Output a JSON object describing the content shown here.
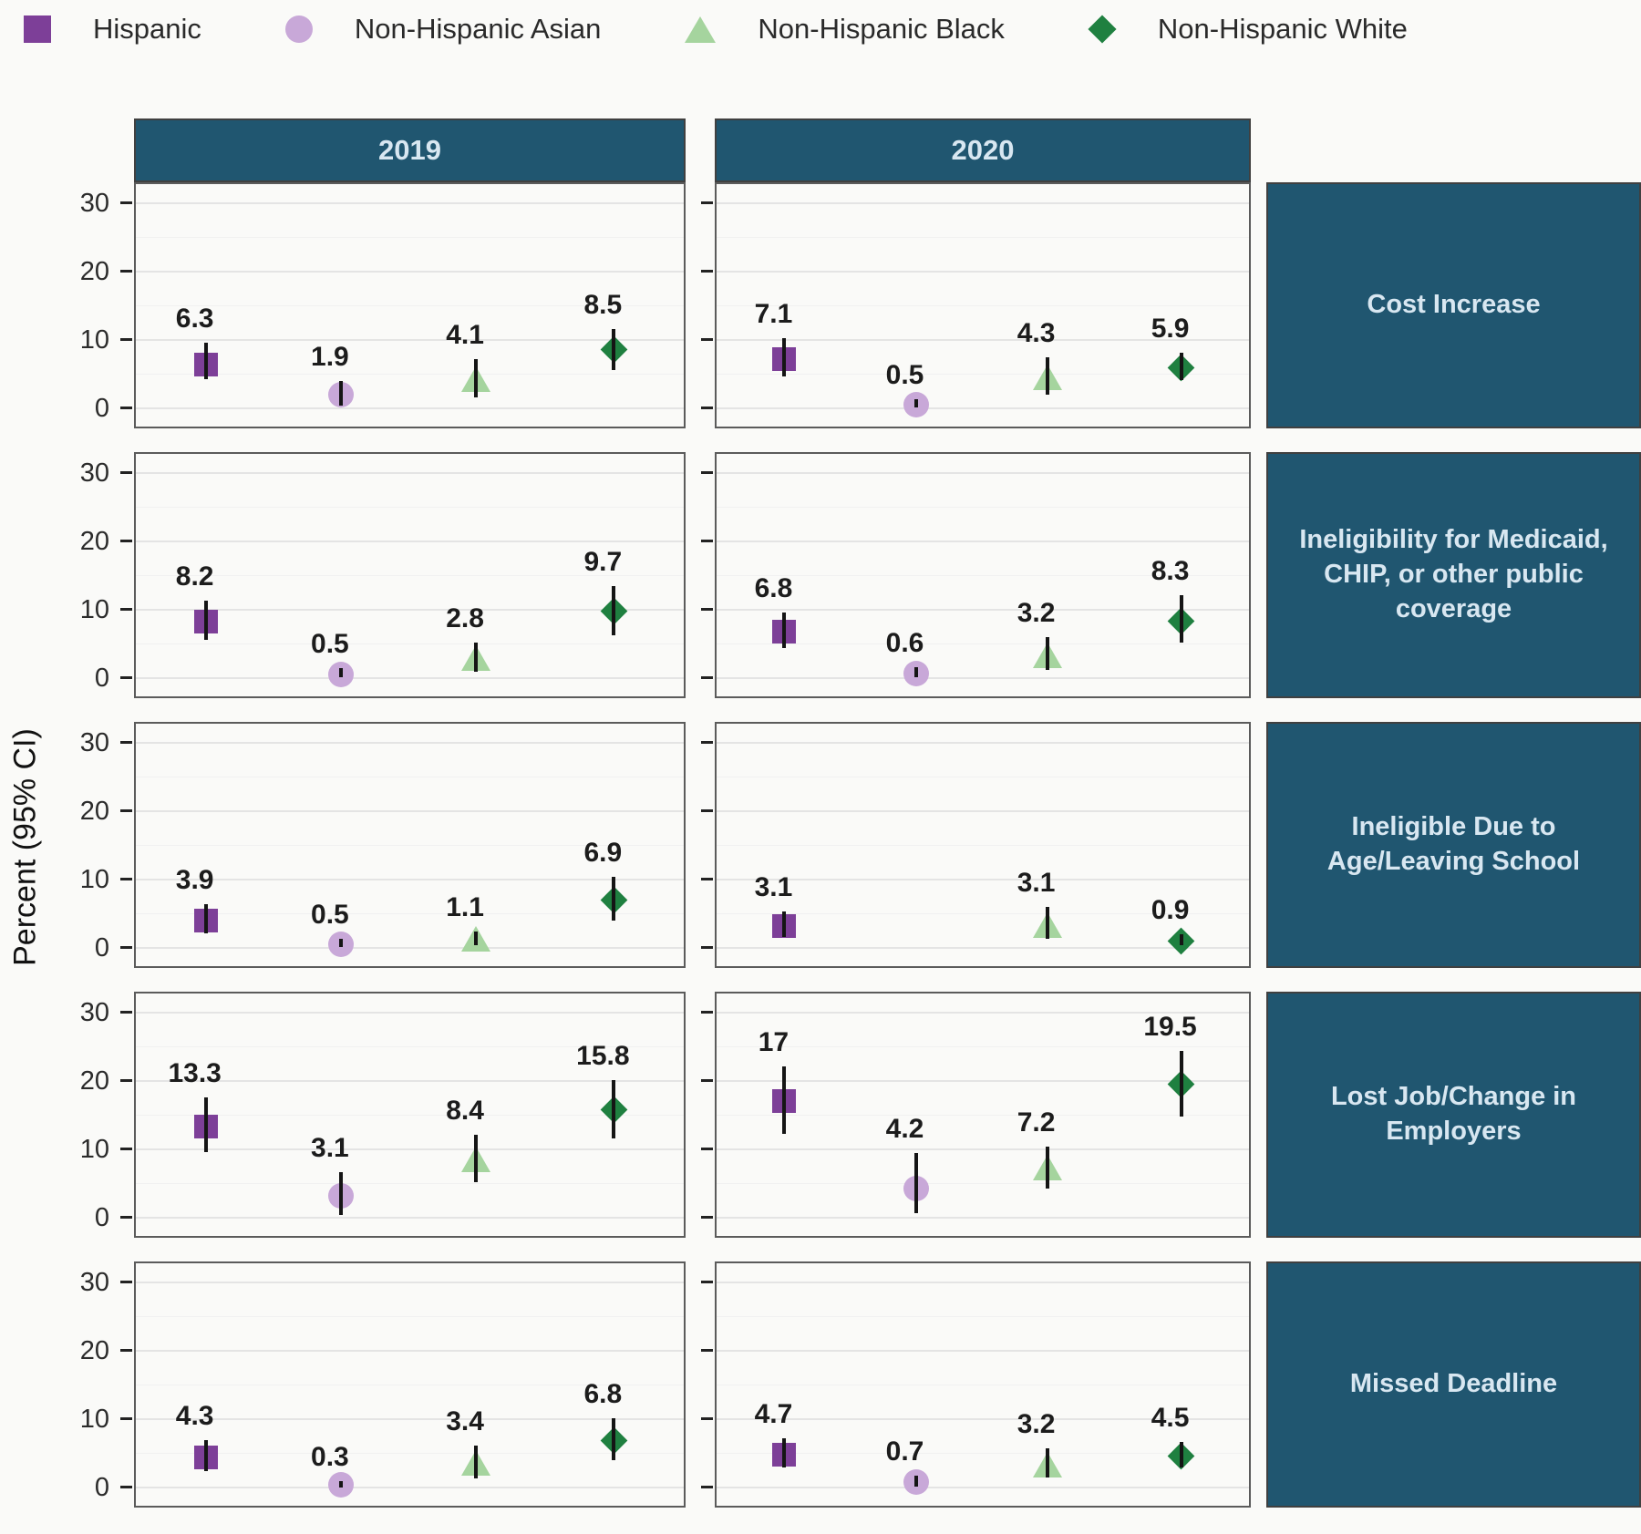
{
  "legend": {
    "items": [
      {
        "id": "hispanic",
        "label": "Hispanic",
        "shape": "square",
        "color": "#7d3f98"
      },
      {
        "id": "non-hispanic-asian",
        "label": "Non-Hispanic Asian",
        "shape": "circle",
        "color": "#c8a8d8"
      },
      {
        "id": "non-hispanic-black",
        "label": "Non-Hispanic Black",
        "shape": "triangle",
        "color": "#a5d49e"
      },
      {
        "id": "non-hispanic-white",
        "label": "Non-Hispanic White",
        "shape": "diamond",
        "color": "#1f8040"
      }
    ]
  },
  "colors": {
    "strip_bg": "#205670",
    "strip_text": "#d8e7f1",
    "error_bar": "#151515",
    "panel_bg": "#ffffff",
    "grid_major": "#e4e4e4"
  },
  "chart_data": {
    "type": "scatter",
    "title": "",
    "xlabel": "",
    "ylabel": "Percent (95% CI)",
    "y_ticks": [
      30,
      20,
      10,
      0
    ],
    "y_minor": [
      25,
      15,
      5
    ],
    "ylim": [
      -3,
      33
    ],
    "grid": true,
    "legend_position": "top",
    "columns": [
      "2019",
      "2020"
    ],
    "groups": [
      "Hispanic",
      "Non-Hispanic Asian",
      "Non-Hispanic Black",
      "Non-Hispanic White"
    ],
    "facets": [
      {
        "label": "Cost Increase",
        "panels": [
          {
            "column": "2019",
            "points": [
              {
                "group": "Hispanic",
                "value": 6.3,
                "ci_low": 4.2,
                "ci_high": 9.6
              },
              {
                "group": "Non-Hispanic Asian",
                "value": 1.9,
                "ci_low": 0.4,
                "ci_high": 3.9
              },
              {
                "group": "Non-Hispanic Black",
                "value": 4.1,
                "ci_low": 1.6,
                "ci_high": 7.2
              },
              {
                "group": "Non-Hispanic White",
                "value": 8.5,
                "ci_low": 5.6,
                "ci_high": 11.6
              }
            ]
          },
          {
            "column": "2020",
            "points": [
              {
                "group": "Hispanic",
                "value": 7.1,
                "ci_low": 4.6,
                "ci_high": 10.2
              },
              {
                "group": "Non-Hispanic Asian",
                "value": 0.5,
                "ci_low": 0.1,
                "ci_high": 1.3
              },
              {
                "group": "Non-Hispanic Black",
                "value": 4.3,
                "ci_low": 2.0,
                "ci_high": 7.4
              },
              {
                "group": "Non-Hispanic White",
                "value": 5.9,
                "ci_low": 4.1,
                "ci_high": 8.1
              }
            ]
          }
        ]
      },
      {
        "label": "Ineligibility for Medicaid, CHIP, or other public coverage",
        "panels": [
          {
            "column": "2019",
            "points": [
              {
                "group": "Hispanic",
                "value": 8.2,
                "ci_low": 5.6,
                "ci_high": 11.3
              },
              {
                "group": "Non-Hispanic Asian",
                "value": 0.5,
                "ci_low": 0.1,
                "ci_high": 1.4
              },
              {
                "group": "Non-Hispanic Black",
                "value": 2.8,
                "ci_low": 0.9,
                "ci_high": 5.1
              },
              {
                "group": "Non-Hispanic White",
                "value": 9.7,
                "ci_low": 6.2,
                "ci_high": 13.4
              }
            ]
          },
          {
            "column": "2020",
            "points": [
              {
                "group": "Hispanic",
                "value": 6.8,
                "ci_low": 4.3,
                "ci_high": 9.6
              },
              {
                "group": "Non-Hispanic Asian",
                "value": 0.6,
                "ci_low": 0.1,
                "ci_high": 1.5
              },
              {
                "group": "Non-Hispanic Black",
                "value": 3.2,
                "ci_low": 1.1,
                "ci_high": 5.9
              },
              {
                "group": "Non-Hispanic White",
                "value": 8.3,
                "ci_low": 5.1,
                "ci_high": 12.1
              }
            ]
          }
        ]
      },
      {
        "label": "Ineligible Due to Age/Leaving School",
        "panels": [
          {
            "column": "2019",
            "points": [
              {
                "group": "Hispanic",
                "value": 3.9,
                "ci_low": 2.1,
                "ci_high": 6.3
              },
              {
                "group": "Non-Hispanic Asian",
                "value": 0.5,
                "ci_low": 0.1,
                "ci_high": 1.3
              },
              {
                "group": "Non-Hispanic Black",
                "value": 1.1,
                "ci_low": 0.3,
                "ci_high": 2.3
              },
              {
                "group": "Non-Hispanic White",
                "value": 6.9,
                "ci_low": 3.9,
                "ci_high": 10.3
              }
            ]
          },
          {
            "column": "2020",
            "points": [
              {
                "group": "Hispanic",
                "value": 3.1,
                "ci_low": 1.6,
                "ci_high": 5.3
              },
              {
                "group": "Non-Hispanic Black",
                "value": 3.1,
                "ci_low": 1.3,
                "ci_high": 5.9
              },
              {
                "group": "Non-Hispanic White",
                "value": 0.9,
                "ci_low": 0.3,
                "ci_high": 1.9
              }
            ]
          }
        ]
      },
      {
        "label": "Lost Job/Change in Employers",
        "panels": [
          {
            "column": "2019",
            "points": [
              {
                "group": "Hispanic",
                "value": 13.3,
                "ci_low": 9.6,
                "ci_high": 17.6
              },
              {
                "group": "Non-Hispanic Asian",
                "value": 3.1,
                "ci_low": 0.4,
                "ci_high": 6.6
              },
              {
                "group": "Non-Hispanic Black",
                "value": 8.4,
                "ci_low": 5.2,
                "ci_high": 12.1
              },
              {
                "group": "Non-Hispanic White",
                "value": 15.8,
                "ci_low": 11.6,
                "ci_high": 20.1
              }
            ]
          },
          {
            "column": "2020",
            "points": [
              {
                "group": "Hispanic",
                "value": 17,
                "ci_low": 12.2,
                "ci_high": 22.1
              },
              {
                "group": "Non-Hispanic Asian",
                "value": 4.2,
                "ci_low": 0.6,
                "ci_high": 9.4
              },
              {
                "group": "Non-Hispanic Black",
                "value": 7.2,
                "ci_low": 4.2,
                "ci_high": 10.4
              },
              {
                "group": "Non-Hispanic White",
                "value": 19.5,
                "ci_low": 14.7,
                "ci_high": 24.4
              }
            ]
          }
        ]
      },
      {
        "label": "Missed Deadline",
        "panels": [
          {
            "column": "2019",
            "points": [
              {
                "group": "Hispanic",
                "value": 4.3,
                "ci_low": 2.4,
                "ci_high": 6.9
              },
              {
                "group": "Non-Hispanic Asian",
                "value": 0.3,
                "ci_low": 0.0,
                "ci_high": 0.9
              },
              {
                "group": "Non-Hispanic Black",
                "value": 3.4,
                "ci_low": 1.3,
                "ci_high": 6.1
              },
              {
                "group": "Non-Hispanic White",
                "value": 6.8,
                "ci_low": 3.9,
                "ci_high": 10.1
              }
            ]
          },
          {
            "column": "2020",
            "points": [
              {
                "group": "Hispanic",
                "value": 4.7,
                "ci_low": 2.9,
                "ci_high": 7.1
              },
              {
                "group": "Non-Hispanic Asian",
                "value": 0.7,
                "ci_low": 0.1,
                "ci_high": 1.7
              },
              {
                "group": "Non-Hispanic Black",
                "value": 3.2,
                "ci_low": 1.4,
                "ci_high": 5.7
              },
              {
                "group": "Non-Hispanic White",
                "value": 4.5,
                "ci_low": 2.9,
                "ci_high": 6.6
              }
            ]
          }
        ]
      }
    ]
  }
}
